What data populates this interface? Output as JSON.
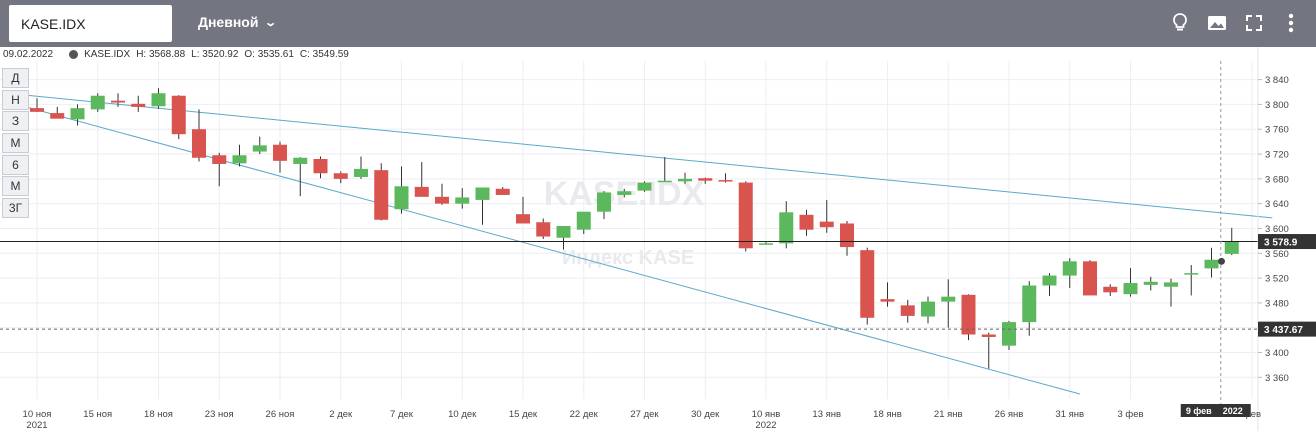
{
  "toolbar": {
    "symbol": "KASE.IDX",
    "period": "Дневной",
    "icons": [
      "lightbulb-icon",
      "image-icon",
      "fullscreen-icon",
      "more-vertical-icon"
    ]
  },
  "legend": {
    "date": "09.02.2022",
    "symbol": "KASE.IDX",
    "h": "H: 3568.88",
    "l": "L: 3520.92",
    "o": "O: 3535.61",
    "c": "C: 3549.59"
  },
  "range_buttons": [
    "Д",
    "Н",
    "З",
    "М",
    "6",
    "М",
    "3Г"
  ],
  "watermark": {
    "line1": "KASE.IDX",
    "line2": "Индекс KASE"
  },
  "price_labels": {
    "current": "3 578.9",
    "secondary": "3 437.67"
  },
  "time_marker": {
    "day": "9 фев",
    "year": "2022"
  },
  "colors": {
    "up": "#5cb85c",
    "down": "#d9534f",
    "trendline": "#5aa9c8",
    "label_bg": "#333333"
  },
  "chart_data": {
    "type": "candlestick",
    "symbol": "KASE.IDX",
    "y_ticks": [
      3360,
      3400,
      3440,
      3480,
      3520,
      3560,
      3600,
      3640,
      3680,
      3720,
      3760,
      3800,
      3840
    ],
    "y_tick_labels": [
      "3 360",
      "3 400",
      "3 440",
      "3 480",
      "3 520",
      "3 560",
      "3 600",
      "3 640",
      "3 680",
      "3 720",
      "3 760",
      "3 800",
      "3 840"
    ],
    "x_labels": [
      {
        "i": 0,
        "text": "10 ноя",
        "sub": "2021"
      },
      {
        "i": 3,
        "text": "15 ноя"
      },
      {
        "i": 6,
        "text": "18 ноя"
      },
      {
        "i": 9,
        "text": "23 ноя"
      },
      {
        "i": 12,
        "text": "26 ноя"
      },
      {
        "i": 15,
        "text": "2 дек"
      },
      {
        "i": 18,
        "text": "7 дек"
      },
      {
        "i": 21,
        "text": "10 дек"
      },
      {
        "i": 24,
        "text": "15 дек"
      },
      {
        "i": 27,
        "text": "22 дек"
      },
      {
        "i": 30,
        "text": "27 дек"
      },
      {
        "i": 33,
        "text": "30 дек"
      },
      {
        "i": 36,
        "text": "10 янв",
        "sub": "2022"
      },
      {
        "i": 39,
        "text": "13 янв"
      },
      {
        "i": 42,
        "text": "18 янв"
      },
      {
        "i": 45,
        "text": "21 янв"
      },
      {
        "i": 48,
        "text": "26 янв"
      },
      {
        "i": 51,
        "text": "31 янв"
      },
      {
        "i": 54,
        "text": "3 фев"
      },
      {
        "i": 60,
        "text": "фев"
      }
    ],
    "candles": [
      {
        "o": 3794,
        "h": 3810,
        "l": 3788,
        "c": 3788
      },
      {
        "o": 3786,
        "h": 3796,
        "l": 3778,
        "c": 3777
      },
      {
        "o": 3776,
        "h": 3800,
        "l": 3766,
        "c": 3794
      },
      {
        "o": 3792,
        "h": 3818,
        "l": 3788,
        "c": 3814
      },
      {
        "o": 3806,
        "h": 3818,
        "l": 3796,
        "c": 3803
      },
      {
        "o": 3801,
        "h": 3814,
        "l": 3788,
        "c": 3796
      },
      {
        "o": 3797,
        "h": 3826,
        "l": 3793,
        "c": 3818
      },
      {
        "o": 3814,
        "h": 3815,
        "l": 3744,
        "c": 3752
      },
      {
        "o": 3760,
        "h": 3792,
        "l": 3708,
        "c": 3714
      },
      {
        "o": 3718,
        "h": 3722,
        "l": 3668,
        "c": 3704
      },
      {
        "o": 3705,
        "h": 3735,
        "l": 3700,
        "c": 3718
      },
      {
        "o": 3724,
        "h": 3748,
        "l": 3720,
        "c": 3734
      },
      {
        "o": 3735,
        "h": 3740,
        "l": 3690,
        "c": 3709
      },
      {
        "o": 3704,
        "h": 3715,
        "l": 3652,
        "c": 3714
      },
      {
        "o": 3712,
        "h": 3716,
        "l": 3681,
        "c": 3689
      },
      {
        "o": 3689,
        "h": 3692,
        "l": 3673,
        "c": 3680
      },
      {
        "o": 3683,
        "h": 3716,
        "l": 3680,
        "c": 3696
      },
      {
        "o": 3694,
        "h": 3705,
        "l": 3613,
        "c": 3614
      },
      {
        "o": 3631,
        "h": 3700,
        "l": 3624,
        "c": 3668
      },
      {
        "o": 3667,
        "h": 3707,
        "l": 3653,
        "c": 3651
      },
      {
        "o": 3651,
        "h": 3672,
        "l": 3638,
        "c": 3640
      },
      {
        "o": 3640,
        "h": 3665,
        "l": 3632,
        "c": 3650
      },
      {
        "o": 3646,
        "h": 3662,
        "l": 3606,
        "c": 3666
      },
      {
        "o": 3664,
        "h": 3667,
        "l": 3655,
        "c": 3654
      },
      {
        "o": 3623,
        "h": 3651,
        "l": 3608,
        "c": 3608
      },
      {
        "o": 3610,
        "h": 3616,
        "l": 3583,
        "c": 3587
      },
      {
        "o": 3585,
        "h": 3600,
        "l": 3566,
        "c": 3604
      },
      {
        "o": 3598,
        "h": 3626,
        "l": 3591,
        "c": 3627
      },
      {
        "o": 3627,
        "h": 3660,
        "l": 3615,
        "c": 3658
      },
      {
        "o": 3654,
        "h": 3664,
        "l": 3650,
        "c": 3660
      },
      {
        "o": 3661,
        "h": 3676,
        "l": 3659,
        "c": 3674
      },
      {
        "o": 3676,
        "h": 3715,
        "l": 3675,
        "c": 3677
      },
      {
        "o": 3676,
        "h": 3690,
        "l": 3672,
        "c": 3680
      },
      {
        "o": 3681,
        "h": 3682,
        "l": 3672,
        "c": 3677
      },
      {
        "o": 3678,
        "h": 3689,
        "l": 3674,
        "c": 3676
      },
      {
        "o": 3674,
        "h": 3676,
        "l": 3563,
        "c": 3568
      },
      {
        "o": 3576,
        "h": 3579,
        "l": 3574,
        "c": 3576
      },
      {
        "o": 3576,
        "h": 3644,
        "l": 3568,
        "c": 3626
      },
      {
        "o": 3622,
        "h": 3630,
        "l": 3588,
        "c": 3598
      },
      {
        "o": 3611,
        "h": 3646,
        "l": 3593,
        "c": 3602
      },
      {
        "o": 3608,
        "h": 3612,
        "l": 3556,
        "c": 3570
      },
      {
        "o": 3565,
        "h": 3569,
        "l": 3445,
        "c": 3456
      },
      {
        "o": 3486,
        "h": 3513,
        "l": 3474,
        "c": 3482
      },
      {
        "o": 3476,
        "h": 3485,
        "l": 3448,
        "c": 3459
      },
      {
        "o": 3458,
        "h": 3490,
        "l": 3447,
        "c": 3482
      },
      {
        "o": 3482,
        "h": 3518,
        "l": 3440,
        "c": 3490
      },
      {
        "o": 3493,
        "h": 3494,
        "l": 3420,
        "c": 3429
      },
      {
        "o": 3429,
        "h": 3432,
        "l": 3374,
        "c": 3425
      },
      {
        "o": 3411,
        "h": 3451,
        "l": 3404,
        "c": 3449
      },
      {
        "o": 3449,
        "h": 3515,
        "l": 3427,
        "c": 3508
      },
      {
        "o": 3508,
        "h": 3528,
        "l": 3491,
        "c": 3524
      },
      {
        "o": 3524,
        "h": 3552,
        "l": 3504,
        "c": 3547
      },
      {
        "o": 3547,
        "h": 3549,
        "l": 3496,
        "c": 3492
      },
      {
        "o": 3506,
        "h": 3510,
        "l": 3491,
        "c": 3497
      },
      {
        "o": 3494,
        "h": 3536,
        "l": 3490,
        "c": 3512
      },
      {
        "o": 3509,
        "h": 3522,
        "l": 3500,
        "c": 3514
      },
      {
        "o": 3506,
        "h": 3519,
        "l": 3474,
        "c": 3513
      },
      {
        "o": 3526,
        "h": 3541,
        "l": 3492,
        "c": 3528
      },
      {
        "o": 3535.61,
        "h": 3568.88,
        "l": 3520.92,
        "c": 3549.59
      },
      {
        "o": 3559,
        "h": 3601,
        "l": 3557,
        "c": 3578.9
      }
    ],
    "trendlines": [
      {
        "from": {
          "i": -1.5,
          "v": 3818
        },
        "to": {
          "i": 61,
          "v": 3617
        }
      },
      {
        "from": {
          "i": -1,
          "v": 3800
        },
        "to": {
          "i": 51.5,
          "v": 3333
        }
      }
    ],
    "price_lines": [
      {
        "value": 3578.9,
        "style": "solid",
        "label": "3 578.9"
      },
      {
        "value": 3437.67,
        "style": "dashed",
        "label": "3 437.67"
      }
    ],
    "marker_point": {
      "i": 58,
      "v": 3547
    },
    "ylim": [
      3325,
      3870
    ]
  }
}
